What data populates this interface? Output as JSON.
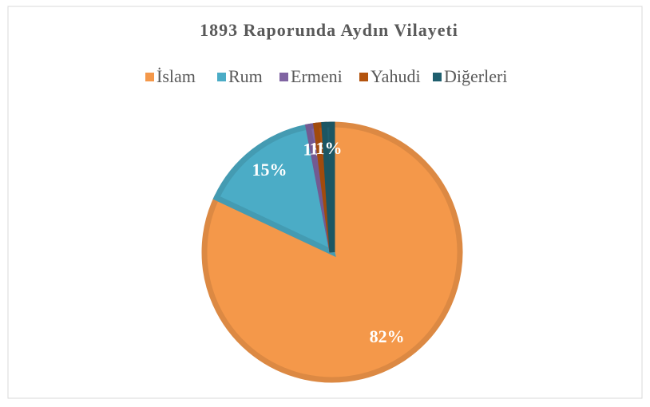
{
  "chart_data": {
    "type": "pie",
    "title": "1893 Raporunda Aydın Vilayeti",
    "categories": [
      "İslam",
      "Rum",
      "Ermeni",
      "Yahudi",
      "Diğerleri"
    ],
    "values": [
      82,
      15,
      1,
      1,
      1
    ],
    "value_labels": [
      "82%",
      "15%",
      "1%",
      "1%",
      "1%"
    ],
    "colors": [
      "#f4984a",
      "#4bacc6",
      "#8064a2",
      "#b3530e",
      "#1f5f6e"
    ],
    "legend": "top"
  }
}
